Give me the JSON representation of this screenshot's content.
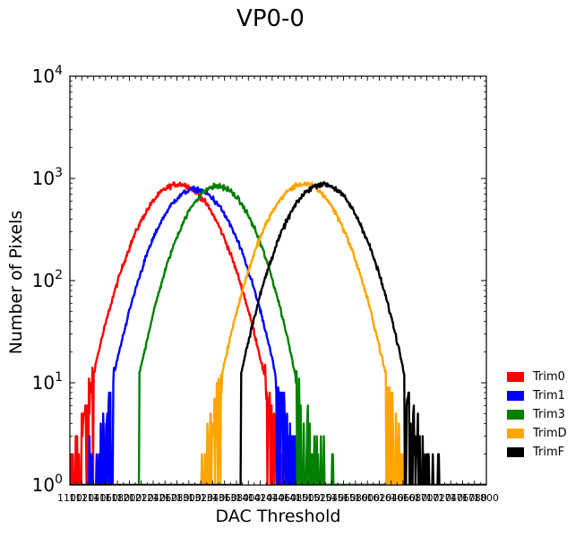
{
  "chart_data": {
    "type": "line",
    "title": "VP0-0",
    "xlabel": "DAC Threshold",
    "ylabel": "Number of Pixels",
    "xlim": [
      1100,
      1800
    ],
    "ylim": [
      1,
      10000
    ],
    "yscale": "log",
    "y_ticks": [
      1,
      10,
      100,
      1000,
      10000
    ],
    "y_tick_labels": [
      {
        "base": "10",
        "exp": "0"
      },
      {
        "base": "10",
        "exp": "1"
      },
      {
        "base": "10",
        "exp": "2"
      },
      {
        "base": "10",
        "exp": "3"
      },
      {
        "base": "10",
        "exp": "4"
      }
    ],
    "x_ticks": [
      1100,
      1120,
      1140,
      1160,
      1180,
      1200,
      1220,
      1240,
      1260,
      1280,
      1300,
      1320,
      1340,
      1360,
      1380,
      1400,
      1420,
      1440,
      1460,
      1480,
      1500,
      1520,
      1540,
      1560,
      1580,
      1600,
      1620,
      1640,
      1660,
      1680,
      1700,
      1720,
      1740,
      1760,
      1780,
      1800
    ],
    "x_tick_labels": [
      "1100",
      "1120",
      "1140",
      "1160",
      "1180",
      "1200",
      "1220",
      "1240",
      "1260",
      "1280",
      "1300",
      "1320",
      "1340",
      "1360",
      "1380",
      "1400",
      "1420",
      "1440",
      "1460",
      "1480",
      "1500",
      "1520",
      "1540",
      "1560",
      "1580",
      "1600",
      "1620",
      "1640",
      "1660",
      "1680",
      "1700",
      "1720",
      "1740",
      "1760",
      "1780",
      "1800"
    ],
    "legend_position": "right",
    "series": [
      {
        "name": "Trim0",
        "color": "#ff0000",
        "mean": 1283,
        "sigma": 49,
        "peak": 880,
        "noise_range": [
          1100,
          1460
        ]
      },
      {
        "name": "Trim1",
        "color": "#0000ff",
        "mean": 1310,
        "sigma": 47,
        "peak": 780,
        "noise_range": [
          1130,
          1480
        ]
      },
      {
        "name": "Trim3",
        "color": "#008000",
        "mean": 1348,
        "sigma": 45,
        "peak": 840,
        "noise_range": [
          1235,
          1550
        ]
      },
      {
        "name": "TrimD",
        "color": "#ffa500",
        "mean": 1493,
        "sigma": 47,
        "peak": 880,
        "noise_range": [
          1300,
          1660
        ]
      },
      {
        "name": "TrimF",
        "color": "#000000",
        "mean": 1525,
        "sigma": 47,
        "peak": 880,
        "noise_range": [
          1400,
          1720
        ]
      }
    ]
  }
}
